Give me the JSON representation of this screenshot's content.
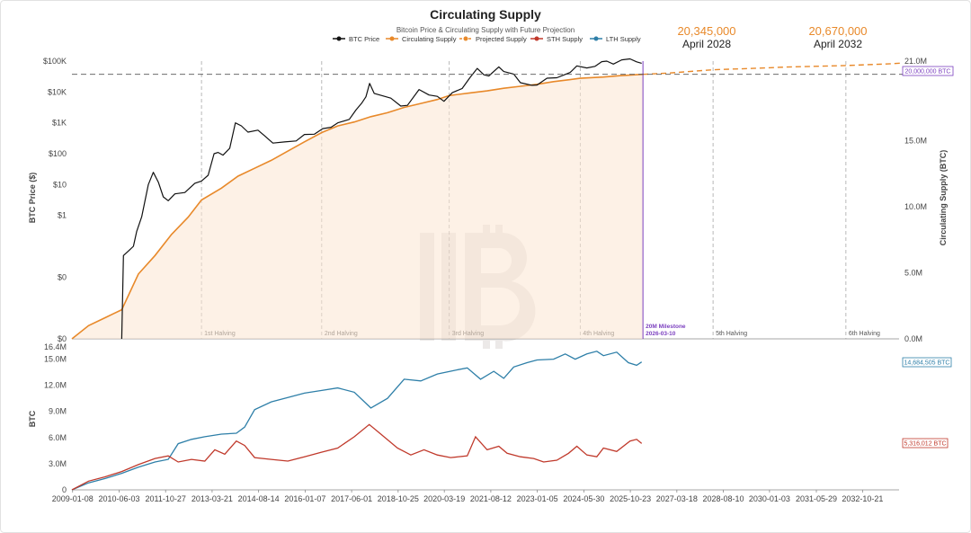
{
  "chart_data": {
    "type": "line",
    "title": "Circulating Supply",
    "subtitle": "Bitcoin Price & Circulating Supply with Future Projection",
    "legend": [
      {
        "label": "BTC Price",
        "color": "#111111"
      },
      {
        "label": "Circulating Supply",
        "color": "#e8892a"
      },
      {
        "label": "Projected Supply",
        "color": "#e8892a"
      },
      {
        "label": "STH Supply",
        "color": "#c0392b"
      },
      {
        "label": "LTH Supply",
        "color": "#2e7fa8"
      }
    ],
    "projections": [
      {
        "value": "20,345,000",
        "date": "April 2028"
      },
      {
        "value": "20,670,000",
        "date": "April 2032"
      }
    ],
    "top_panel": {
      "ylabel_left": "BTC Price ($)",
      "ylabel_right": "Circulating Supply (BTC)",
      "left_ticks": [
        "$100K",
        "$10K",
        "$1K",
        "$100",
        "$10",
        "$1",
        "$0",
        "$0"
      ],
      "right_ticks": [
        "21.0M",
        "15.0M",
        "10.0M",
        "5.0M",
        "0.0M"
      ],
      "right_tick_values": [
        21,
        15,
        10,
        5,
        0
      ],
      "price_log_range": [
        -4,
        5
      ],
      "supply_range_millions": [
        0,
        21
      ],
      "milestone_label": "20,000,000 BTC",
      "milestone_line1": "20M Milestone",
      "milestone_line2": "2026-03-10",
      "milestone_year": 2026.19,
      "halvings": [
        {
          "label": "1st Halving",
          "year": 2012.9
        },
        {
          "label": "2nd Halving",
          "year": 2016.52
        },
        {
          "label": "3rd Halving",
          "year": 2020.36
        },
        {
          "label": "4th Halving",
          "year": 2024.3
        },
        {
          "label": "5th Halving",
          "year": 2028.3
        },
        {
          "label": "6th Halving",
          "year": 2032.3
        }
      ],
      "price_points": [
        [
          2010.5,
          0.0001
        ],
        [
          2010.55,
          0.05
        ],
        [
          2010.7,
          0.07
        ],
        [
          2010.85,
          0.1
        ],
        [
          2010.95,
          0.3
        ],
        [
          2011.1,
          0.9
        ],
        [
          2011.3,
          10
        ],
        [
          2011.45,
          25
        ],
        [
          2011.6,
          12
        ],
        [
          2011.75,
          4
        ],
        [
          2011.9,
          3
        ],
        [
          2012.1,
          5
        ],
        [
          2012.4,
          5.5
        ],
        [
          2012.7,
          11
        ],
        [
          2012.9,
          13
        ],
        [
          2013.1,
          20
        ],
        [
          2013.28,
          100
        ],
        [
          2013.4,
          110
        ],
        [
          2013.55,
          90
        ],
        [
          2013.75,
          150
        ],
        [
          2013.92,
          1000
        ],
        [
          2014.1,
          800
        ],
        [
          2014.3,
          500
        ],
        [
          2014.6,
          580
        ],
        [
          2014.8,
          380
        ],
        [
          2015.05,
          220
        ],
        [
          2015.4,
          240
        ],
        [
          2015.75,
          260
        ],
        [
          2016.0,
          420
        ],
        [
          2016.3,
          430
        ],
        [
          2016.55,
          650
        ],
        [
          2016.8,
          720
        ],
        [
          2017.0,
          1000
        ],
        [
          2017.35,
          1300
        ],
        [
          2017.55,
          2600
        ],
        [
          2017.72,
          4300
        ],
        [
          2017.85,
          7000
        ],
        [
          2017.96,
          19000
        ],
        [
          2018.1,
          9000
        ],
        [
          2018.35,
          7500
        ],
        [
          2018.6,
          6300
        ],
        [
          2018.9,
          3500
        ],
        [
          2019.1,
          3700
        ],
        [
          2019.45,
          12000
        ],
        [
          2019.75,
          8000
        ],
        [
          2020.0,
          7200
        ],
        [
          2020.2,
          5000
        ],
        [
          2020.45,
          9500
        ],
        [
          2020.75,
          13000
        ],
        [
          2020.98,
          29000
        ],
        [
          2021.2,
          58000
        ],
        [
          2021.4,
          36000
        ],
        [
          2021.55,
          33000
        ],
        [
          2021.85,
          65000
        ],
        [
          2022.0,
          46000
        ],
        [
          2022.3,
          38000
        ],
        [
          2022.5,
          20000
        ],
        [
          2022.85,
          16500
        ],
        [
          2023.0,
          16800
        ],
        [
          2023.3,
          28000
        ],
        [
          2023.6,
          29000
        ],
        [
          2023.85,
          37000
        ],
        [
          2024.0,
          43000
        ],
        [
          2024.2,
          70000
        ],
        [
          2024.5,
          60000
        ],
        [
          2024.75,
          68000
        ],
        [
          2024.95,
          96000
        ],
        [
          2025.1,
          100000
        ],
        [
          2025.3,
          80000
        ],
        [
          2025.55,
          110000
        ],
        [
          2025.8,
          118000
        ],
        [
          2026.0,
          95000
        ],
        [
          2026.15,
          85000
        ]
      ],
      "supply_points": [
        [
          2009.0,
          0
        ],
        [
          2009.5,
          1.0
        ],
        [
          2010.0,
          1.6
        ],
        [
          2010.5,
          2.2
        ],
        [
          2011.0,
          4.9
        ],
        [
          2011.5,
          6.3
        ],
        [
          2012.0,
          7.9
        ],
        [
          2012.5,
          9.2
        ],
        [
          2012.9,
          10.5
        ],
        [
          2013.5,
          11.4
        ],
        [
          2014.0,
          12.3
        ],
        [
          2014.5,
          12.9
        ],
        [
          2015.0,
          13.5
        ],
        [
          2015.5,
          14.2
        ],
        [
          2016.0,
          14.9
        ],
        [
          2016.52,
          15.6
        ],
        [
          2017.0,
          16.1
        ],
        [
          2017.5,
          16.4
        ],
        [
          2018.0,
          16.8
        ],
        [
          2018.5,
          17.1
        ],
        [
          2019.0,
          17.5
        ],
        [
          2019.5,
          17.8
        ],
        [
          2020.0,
          18.1
        ],
        [
          2020.36,
          18.4
        ],
        [
          2021.0,
          18.6
        ],
        [
          2021.5,
          18.75
        ],
        [
          2022.0,
          18.95
        ],
        [
          2022.5,
          19.1
        ],
        [
          2023.0,
          19.25
        ],
        [
          2023.5,
          19.45
        ],
        [
          2024.0,
          19.6
        ],
        [
          2024.3,
          19.7
        ],
        [
          2025.0,
          19.8
        ],
        [
          2025.5,
          19.9
        ],
        [
          2026.19,
          20.0
        ]
      ],
      "projected_points": [
        [
          2026.19,
          20.0
        ],
        [
          2027.0,
          20.1
        ],
        [
          2028.3,
          20.345
        ],
        [
          2029.5,
          20.45
        ],
        [
          2030.5,
          20.55
        ],
        [
          2032.3,
          20.67
        ],
        [
          2033.5,
          20.78
        ],
        [
          2034.0,
          20.85
        ]
      ]
    },
    "bottom_panel": {
      "ylabel": "BTC",
      "left_ticks": [
        "16.4M",
        "15.0M",
        "12.0M",
        "9.0M",
        "6.0M",
        "3.0M",
        "0"
      ],
      "left_tick_values": [
        16.4,
        15,
        12,
        9,
        6,
        3,
        0
      ],
      "y_range_millions": [
        0,
        16.4
      ],
      "lth_label": "14,684,505 BTC",
      "sth_label": "5,316,012 BTC",
      "lth_points": [
        [
          2009.0,
          0
        ],
        [
          2009.5,
          0.8
        ],
        [
          2010.0,
          1.3
        ],
        [
          2010.5,
          1.9
        ],
        [
          2011.0,
          2.6
        ],
        [
          2011.5,
          3.2
        ],
        [
          2011.9,
          3.5
        ],
        [
          2012.2,
          5.3
        ],
        [
          2012.6,
          5.8
        ],
        [
          2013.0,
          6.1
        ],
        [
          2013.5,
          6.4
        ],
        [
          2013.95,
          6.5
        ],
        [
          2014.2,
          7.2
        ],
        [
          2014.5,
          9.2
        ],
        [
          2015.0,
          10.1
        ],
        [
          2015.5,
          10.6
        ],
        [
          2016.0,
          11.1
        ],
        [
          2016.5,
          11.4
        ],
        [
          2017.0,
          11.7
        ],
        [
          2017.5,
          11.2
        ],
        [
          2018.0,
          9.4
        ],
        [
          2018.5,
          10.5
        ],
        [
          2019.0,
          12.7
        ],
        [
          2019.5,
          12.5
        ],
        [
          2020.0,
          13.3
        ],
        [
          2020.5,
          13.7
        ],
        [
          2020.9,
          14.0
        ],
        [
          2021.3,
          12.7
        ],
        [
          2021.7,
          13.6
        ],
        [
          2022.0,
          12.8
        ],
        [
          2022.3,
          14.1
        ],
        [
          2022.7,
          14.6
        ],
        [
          2023.0,
          14.9
        ],
        [
          2023.5,
          15.0
        ],
        [
          2023.85,
          15.6
        ],
        [
          2024.15,
          15.0
        ],
        [
          2024.5,
          15.6
        ],
        [
          2024.8,
          15.9
        ],
        [
          2025.0,
          15.4
        ],
        [
          2025.4,
          15.8
        ],
        [
          2025.75,
          14.6
        ],
        [
          2026.0,
          14.3
        ],
        [
          2026.15,
          14.68
        ]
      ],
      "sth_points": [
        [
          2009.0,
          0
        ],
        [
          2009.5,
          1.0
        ],
        [
          2010.0,
          1.5
        ],
        [
          2010.5,
          2.1
        ],
        [
          2011.0,
          2.9
        ],
        [
          2011.5,
          3.6
        ],
        [
          2011.9,
          3.9
        ],
        [
          2012.2,
          3.2
        ],
        [
          2012.6,
          3.5
        ],
        [
          2013.0,
          3.3
        ],
        [
          2013.3,
          4.6
        ],
        [
          2013.6,
          4.1
        ],
        [
          2013.95,
          5.6
        ],
        [
          2014.2,
          5.1
        ],
        [
          2014.5,
          3.7
        ],
        [
          2015.0,
          3.5
        ],
        [
          2015.5,
          3.3
        ],
        [
          2016.0,
          3.8
        ],
        [
          2016.5,
          4.3
        ],
        [
          2017.0,
          4.8
        ],
        [
          2017.5,
          6.1
        ],
        [
          2017.95,
          7.5
        ],
        [
          2018.3,
          6.4
        ],
        [
          2018.8,
          4.8
        ],
        [
          2019.2,
          4.0
        ],
        [
          2019.6,
          4.6
        ],
        [
          2020.0,
          4.0
        ],
        [
          2020.4,
          3.7
        ],
        [
          2020.9,
          3.9
        ],
        [
          2021.15,
          6.1
        ],
        [
          2021.5,
          4.6
        ],
        [
          2021.85,
          5.0
        ],
        [
          2022.1,
          4.2
        ],
        [
          2022.5,
          3.8
        ],
        [
          2022.9,
          3.6
        ],
        [
          2023.2,
          3.2
        ],
        [
          2023.6,
          3.4
        ],
        [
          2023.95,
          4.2
        ],
        [
          2024.2,
          5.0
        ],
        [
          2024.5,
          4.0
        ],
        [
          2024.8,
          3.8
        ],
        [
          2025.0,
          4.8
        ],
        [
          2025.4,
          4.4
        ],
        [
          2025.8,
          5.6
        ],
        [
          2026.0,
          5.8
        ],
        [
          2026.15,
          5.32
        ]
      ]
    },
    "x_axis": {
      "range_years": [
        2009.0,
        2033.9
      ],
      "tick_labels": [
        "2009-01-08",
        "2010-06-03",
        "2011-10-27",
        "2013-03-21",
        "2014-08-14",
        "2016-01-07",
        "2017-06-01",
        "2018-10-25",
        "2020-03-19",
        "2021-08-12",
        "2023-01-05",
        "2024-05-30",
        "2025-10-23",
        "2027-03-18",
        "2028-08-10",
        "2030-01-03",
        "2031-05-29",
        "2032-10-21"
      ],
      "tick_years": [
        2009.02,
        2010.42,
        2011.82,
        2013.22,
        2014.62,
        2016.02,
        2017.42,
        2018.82,
        2020.21,
        2021.61,
        2023.01,
        2024.41,
        2025.81,
        2027.21,
        2028.61,
        2030.0,
        2031.41,
        2032.8
      ]
    }
  }
}
